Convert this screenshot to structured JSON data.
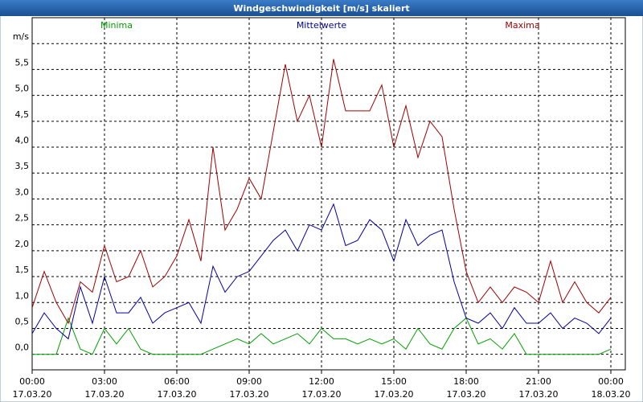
{
  "chart_data": {
    "type": "line",
    "title": "Windgeschwindigkeit [m/s] skaliert",
    "x": [
      0,
      0.5,
      1,
      1.5,
      2,
      2.5,
      3,
      3.5,
      4,
      4.5,
      5,
      5.5,
      6,
      6.5,
      7,
      7.5,
      8,
      8.5,
      9,
      9.5,
      10,
      10.5,
      11,
      11.5,
      12,
      12.5,
      13,
      13.5,
      14,
      14.5,
      15,
      15.5,
      16,
      16.5,
      17,
      17.5,
      18,
      18.5,
      19,
      19.5,
      20,
      20.5,
      21,
      21.5,
      22,
      22.5,
      23,
      23.5,
      24
    ],
    "series": [
      {
        "name": "Minima",
        "color": "#00a000",
        "values": [
          0,
          0,
          0,
          0.7,
          0.1,
          0,
          0.5,
          0.2,
          0.5,
          0.1,
          0,
          0,
          0,
          0,
          0,
          0.1,
          0.2,
          0.3,
          0.2,
          0.4,
          0.2,
          0.3,
          0.4,
          0.2,
          0.5,
          0.3,
          0.3,
          0.2,
          0.3,
          0.2,
          0.3,
          0.1,
          0.5,
          0.2,
          0.1,
          0.5,
          0.7,
          0.2,
          0.3,
          0.1,
          0.4,
          0,
          0,
          0,
          0,
          0,
          0,
          0,
          0.1
        ]
      },
      {
        "name": "Mittelwerte",
        "color": "#0000a0",
        "values": [
          0.4,
          0.8,
          0.5,
          0.3,
          1.3,
          0.6,
          1.5,
          0.8,
          0.8,
          1.1,
          0.6,
          0.8,
          0.9,
          1.0,
          0.6,
          1.7,
          1.2,
          1.5,
          1.6,
          1.9,
          2.2,
          2.4,
          2.0,
          2.5,
          2.4,
          2.9,
          2.1,
          2.2,
          2.6,
          2.4,
          1.8,
          2.6,
          2.1,
          2.3,
          2.4,
          1.4,
          0.7,
          0.6,
          0.8,
          0.5,
          0.9,
          0.6,
          0.6,
          0.8,
          0.5,
          0.7,
          0.6,
          0.4,
          0.7
        ]
      },
      {
        "name": "Maxima",
        "color": "#a00000",
        "values": [
          0.9,
          1.6,
          1.0,
          0.6,
          1.4,
          1.2,
          2.1,
          1.4,
          1.5,
          2.0,
          1.3,
          1.5,
          1.9,
          2.6,
          1.8,
          4.0,
          2.4,
          2.8,
          3.4,
          3.0,
          4.3,
          5.6,
          4.5,
          5.0,
          4.0,
          5.7,
          4.7,
          4.7,
          4.7,
          5.2,
          4.0,
          4.8,
          3.8,
          4.5,
          4.2,
          2.8,
          1.6,
          1.0,
          1.3,
          1.0,
          1.3,
          1.2,
          1.0,
          1.8,
          1.0,
          1.4,
          1.0,
          0.8,
          1.1
        ]
      }
    ],
    "xlim": [
      0,
      24.6
    ],
    "xticks": [
      {
        "value": 0,
        "label": "00:00\n17.03.20"
      },
      {
        "value": 3,
        "label": "03:00\n17.03.20"
      },
      {
        "value": 6,
        "label": "06:00\n17.03.20"
      },
      {
        "value": 9,
        "label": "09:00\n17.03.20"
      },
      {
        "value": 12,
        "label": "12:00\n17.03.20"
      },
      {
        "value": 15,
        "label": "15:00\n17.03.20"
      },
      {
        "value": 18,
        "label": "18:00\n17.03.20"
      },
      {
        "value": 21,
        "label": "21:00\n17.03.20"
      },
      {
        "value": 24,
        "label": "00:00\n18.03.20"
      }
    ],
    "ylim": [
      -0.3,
      6.5
    ],
    "yticks": [
      {
        "value": 0,
        "label": "0,0"
      },
      {
        "value": 0.5,
        "label": "0,5"
      },
      {
        "value": 1,
        "label": "1,0"
      },
      {
        "value": 1.5,
        "label": "1,5"
      },
      {
        "value": 2,
        "label": "2,0"
      },
      {
        "value": 2.5,
        "label": "2,5"
      },
      {
        "value": 3,
        "label": "3,0"
      },
      {
        "value": 3.5,
        "label": "3,5"
      },
      {
        "value": 4,
        "label": "4,0"
      },
      {
        "value": 4.5,
        "label": "4,5"
      },
      {
        "value": 5,
        "label": "5,0"
      },
      {
        "value": 5.5,
        "label": "5,5"
      },
      {
        "value": 6,
        "label": "m/s"
      }
    ],
    "grid": true
  }
}
